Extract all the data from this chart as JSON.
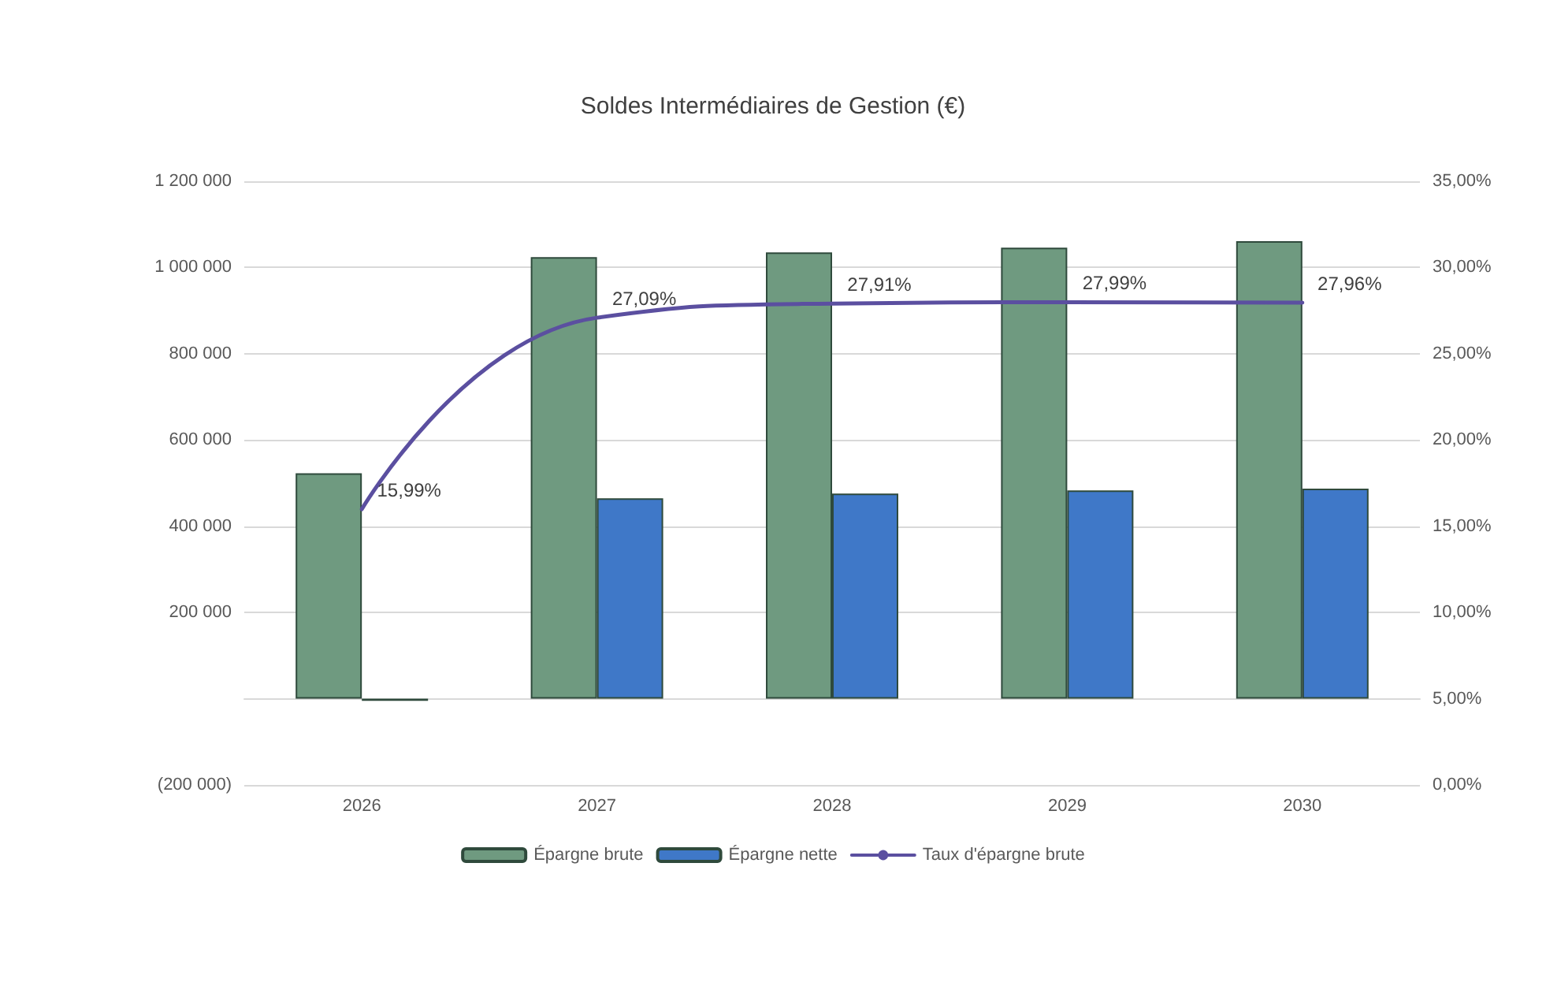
{
  "chart_data": {
    "type": "bar",
    "title": "Soldes Intermédiaires de Gestion (€)",
    "categories": [
      "2026",
      "2027",
      "2028",
      "2029",
      "2030"
    ],
    "series": [
      {
        "name": "Épargne brute",
        "color": "#6f9a80",
        "values": [
          523000,
          1024000,
          1035000,
          1046000,
          1061000
        ]
      },
      {
        "name": "Épargne nette",
        "color": "#3f78c8",
        "values": [
          -5000,
          465000,
          476000,
          483000,
          487000
        ]
      },
      {
        "name": "Taux d'épargne brute",
        "type": "line",
        "axis": "y2",
        "color": "#5b4fa0",
        "values": [
          15.99,
          27.09,
          27.91,
          27.99,
          27.96
        ],
        "value_labels": [
          "15,99%",
          "27,09%",
          "27,91%",
          "27,99%",
          "27,96%"
        ]
      }
    ],
    "ylim": [
      -200000,
      1200000
    ],
    "yticks": [
      {
        "value": -200000,
        "label": "(200 000)"
      },
      {
        "value": 0,
        "label": null
      },
      {
        "value": 200000,
        "label": "200 000"
      },
      {
        "value": 400000,
        "label": "400 000"
      },
      {
        "value": 600000,
        "label": "600 000"
      },
      {
        "value": 800000,
        "label": "800 000"
      },
      {
        "value": 1000000,
        "label": "1 000 000"
      },
      {
        "value": 1200000,
        "label": "1 200 000"
      }
    ],
    "y2lim": [
      0,
      35
    ],
    "y2ticks": [
      {
        "value": 0,
        "label": "0,00%"
      },
      {
        "value": 5,
        "label": "5,00%"
      },
      {
        "value": 10,
        "label": "10,00%"
      },
      {
        "value": 15,
        "label": "15,00%"
      },
      {
        "value": 20,
        "label": "20,00%"
      },
      {
        "value": 25,
        "label": "25,00%"
      },
      {
        "value": 30,
        "label": "30,00%"
      },
      {
        "value": 35,
        "label": "35,00%"
      }
    ],
    "grid": "y",
    "legend": "bottom",
    "marker": "none",
    "line_style": "solid"
  }
}
